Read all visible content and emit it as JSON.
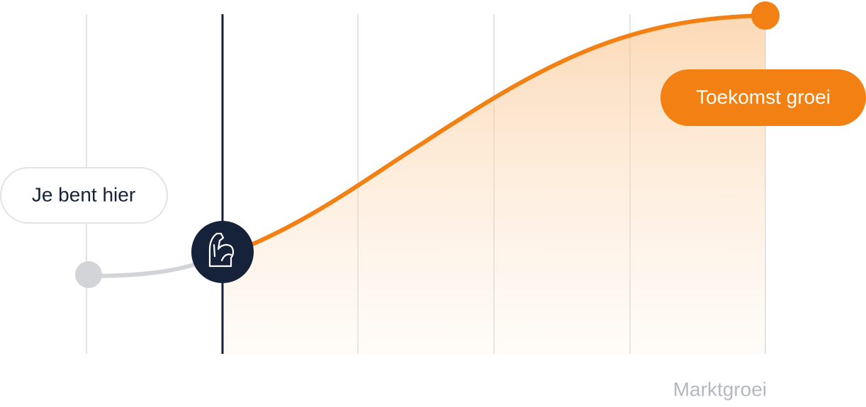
{
  "labels": {
    "current": "Je bent hier",
    "future": "Toekomst groei",
    "axis": "Marktgroei"
  }
}
